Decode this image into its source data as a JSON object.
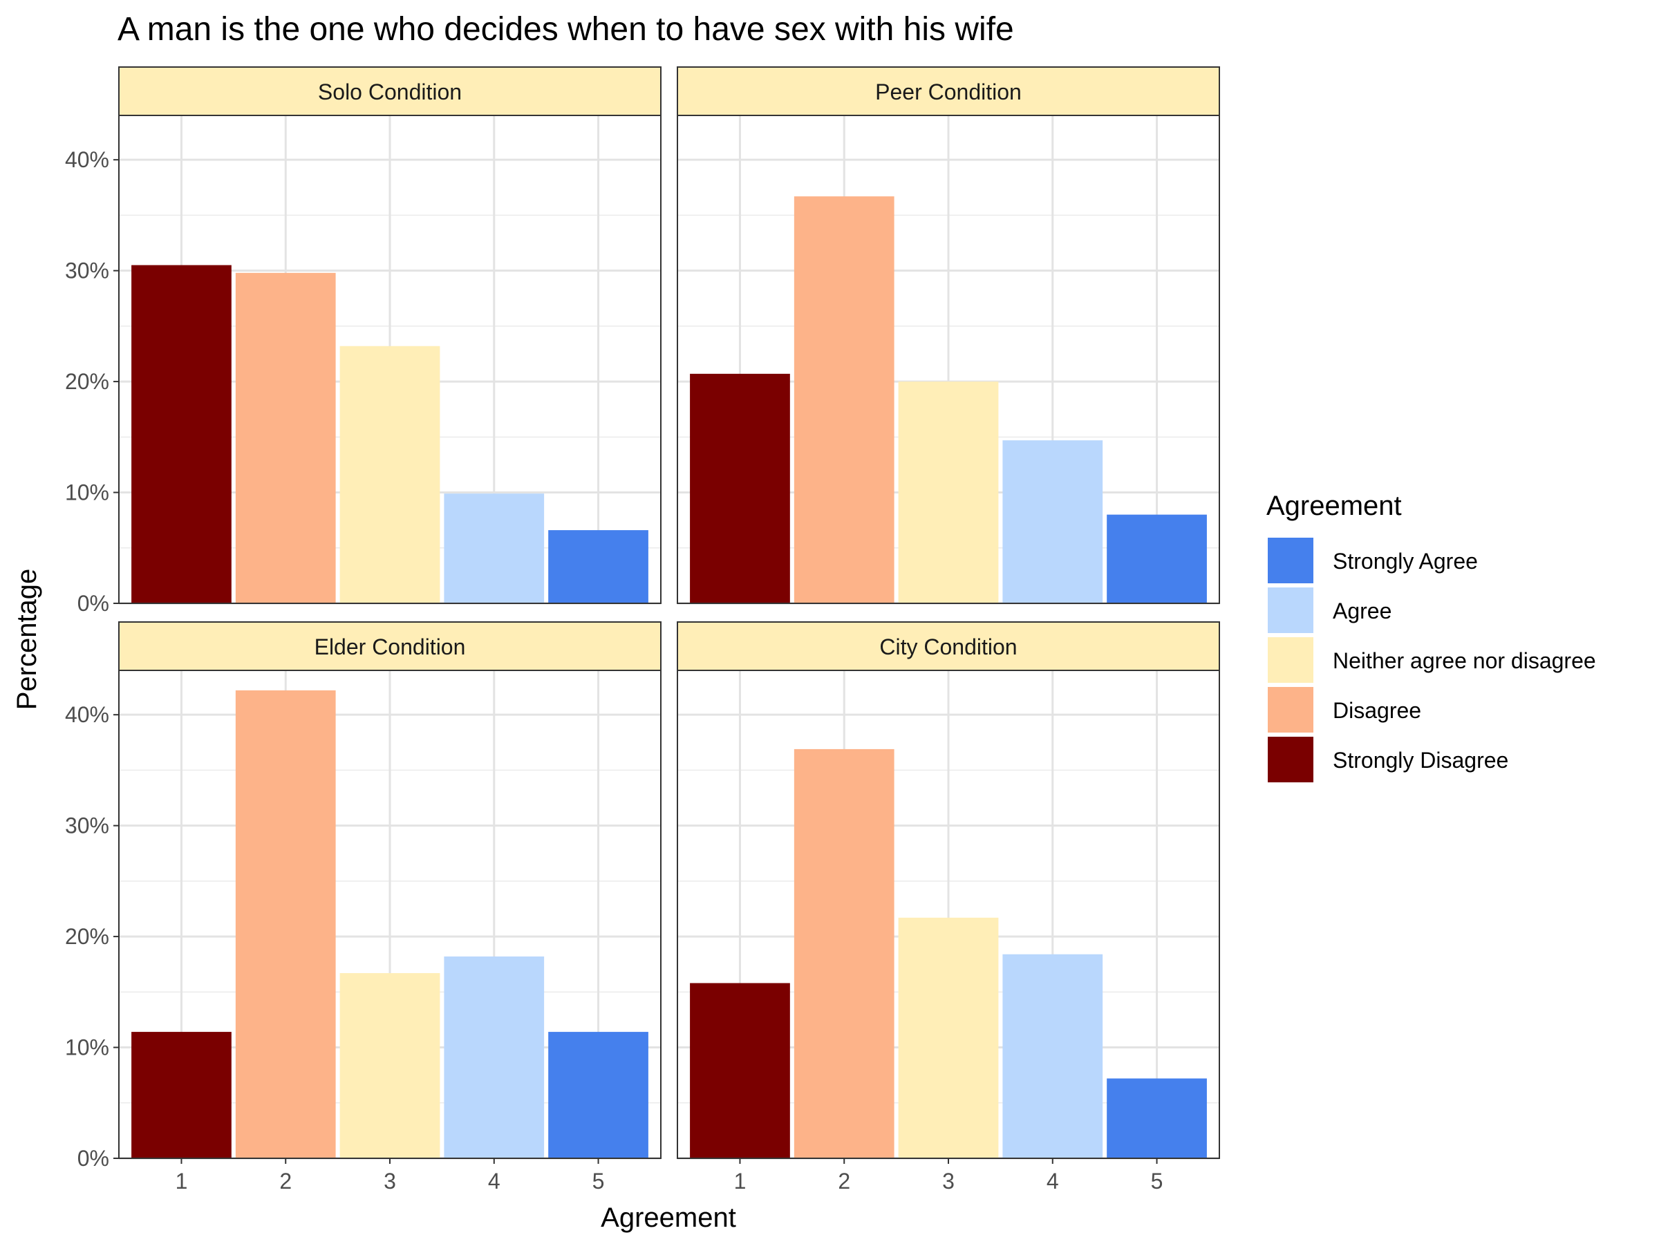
{
  "chart_data": {
    "type": "bar",
    "title": "A man is the one who decides when to have sex with his wife",
    "xlabel": "Agreement",
    "ylabel": "Percentage",
    "categories": [
      "1",
      "2",
      "3",
      "4",
      "5"
    ],
    "ylim": [
      0,
      44
    ],
    "y_ticks": [
      0,
      10,
      20,
      30,
      40
    ],
    "y_tick_labels": [
      "0%",
      "10%",
      "20%",
      "30%",
      "40%"
    ],
    "grid": true,
    "legend": {
      "title": "Agreement",
      "position": "right",
      "entries": [
        {
          "label": "Strongly Agree",
          "color": "#4580ED"
        },
        {
          "label": "Agree",
          "color": "#B9D7FD"
        },
        {
          "label": "Neither agree nor disagree",
          "color": "#FFEEB7"
        },
        {
          "label": "Disagree",
          "color": "#FDB389"
        },
        {
          "label": "Strongly Disagree",
          "color": "#7A0000"
        }
      ]
    },
    "category_colors": [
      "#7A0000",
      "#FDB389",
      "#FFEEB7",
      "#B9D7FD",
      "#4580ED"
    ],
    "strip_color": "#FFEEB7",
    "facets": [
      {
        "name": "Solo Condition",
        "values": [
          30.5,
          29.8,
          23.2,
          9.9,
          6.6
        ]
      },
      {
        "name": "Peer Condition",
        "values": [
          20.7,
          36.7,
          20.0,
          14.7,
          8.0
        ]
      },
      {
        "name": "Elder Condition",
        "values": [
          11.4,
          42.2,
          16.7,
          18.2,
          11.4
        ]
      },
      {
        "name": "City Condition",
        "values": [
          15.8,
          36.9,
          21.7,
          18.4,
          7.2
        ]
      }
    ]
  }
}
